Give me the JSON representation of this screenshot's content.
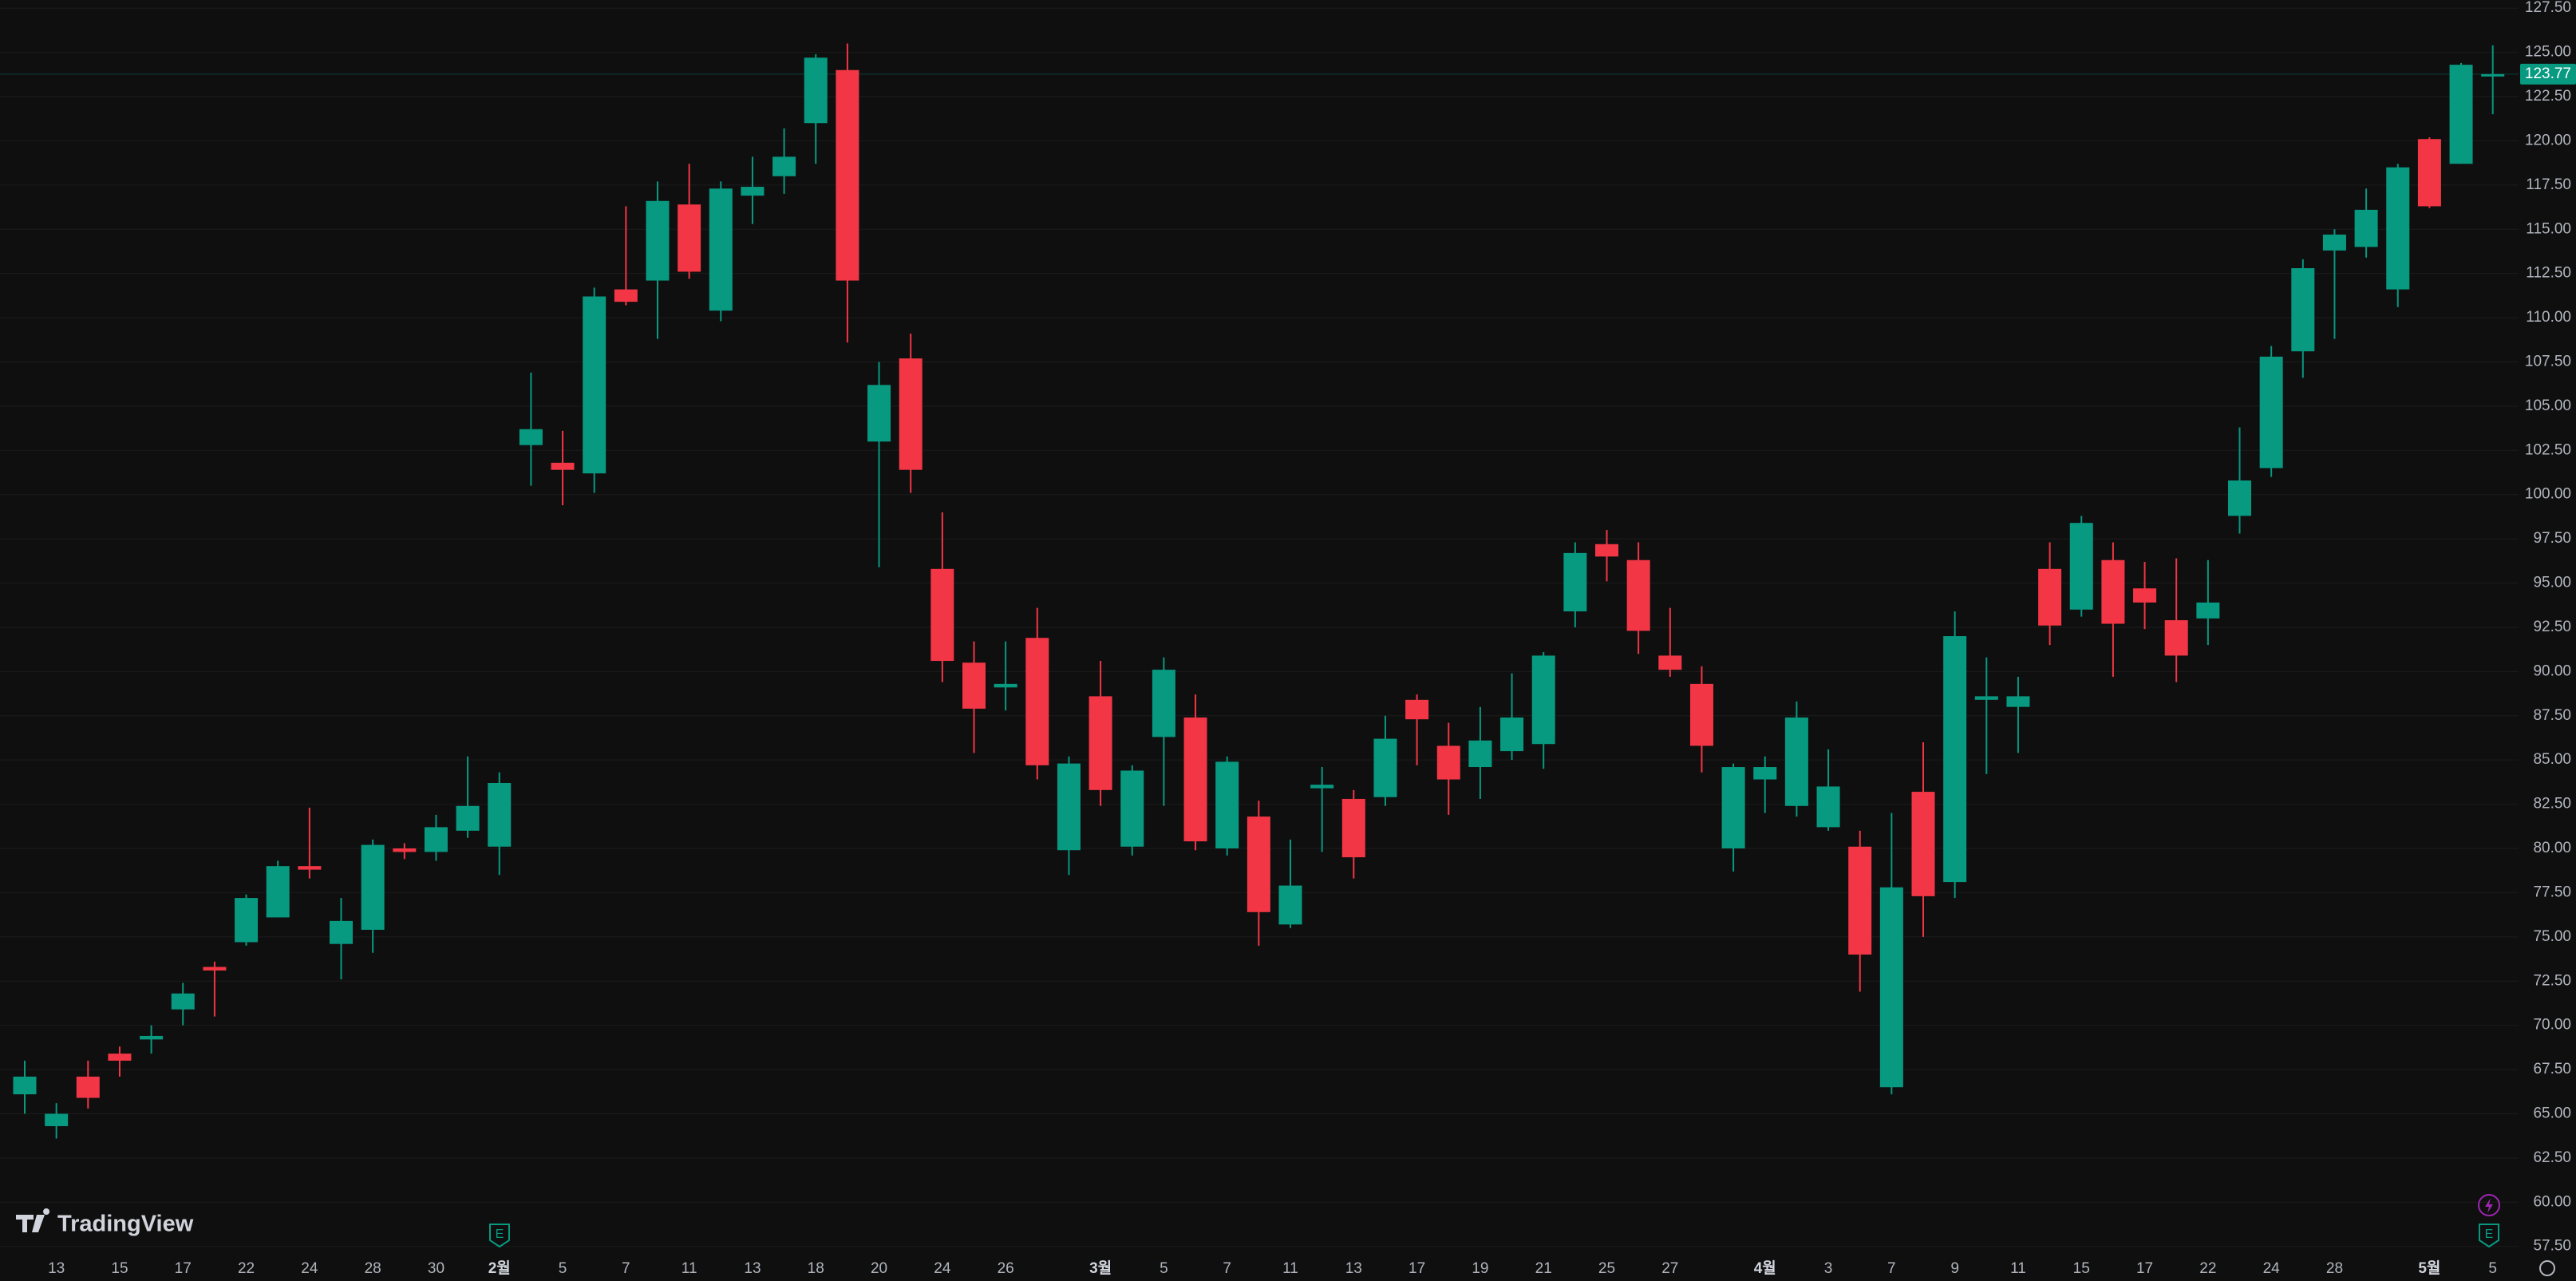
{
  "chart_data": {
    "type": "candlestick",
    "categories": [
      null,
      "13",
      null,
      "15",
      null,
      "17",
      null,
      "22",
      null,
      "24",
      null,
      "28",
      null,
      "30",
      null,
      "2월",
      null,
      "5",
      null,
      "7",
      null,
      "11",
      null,
      "13",
      null,
      "18",
      null,
      "20",
      null,
      "24",
      null,
      "26",
      null,
      null,
      "3월",
      null,
      "5",
      null,
      "7",
      null,
      "11",
      null,
      "13",
      null,
      "17",
      null,
      "19",
      null,
      "21",
      null,
      "25",
      null,
      "27",
      null,
      null,
      "4월",
      null,
      "3",
      null,
      "7",
      null,
      "9",
      null,
      "11",
      null,
      "15",
      null,
      "17",
      null,
      "22",
      null,
      "24",
      null,
      "28",
      null,
      null,
      "5월",
      null,
      "5"
    ],
    "open": [
      66.1,
      64.3,
      67.1,
      68.4,
      69.2,
      70.9,
      73.3,
      74.7,
      76.1,
      79.0,
      74.6,
      75.4,
      80.0,
      79.8,
      81.0,
      80.1,
      102.8,
      101.8,
      101.2,
      111.6,
      112.1,
      116.4,
      110.4,
      116.9,
      118.0,
      121.0,
      124.0,
      103.0,
      107.7,
      95.8,
      90.5,
      89.1,
      91.9,
      79.9,
      88.6,
      80.1,
      86.3,
      87.4,
      80.0,
      81.8,
      75.7,
      83.4,
      82.8,
      82.9,
      88.4,
      85.8,
      84.6,
      85.5,
      85.9,
      93.4,
      97.2,
      96.3,
      90.9,
      89.3,
      80.0,
      83.9,
      82.4,
      81.2,
      80.1,
      66.5,
      83.2,
      78.1,
      88.4,
      88.0,
      95.8,
      93.5,
      96.3,
      94.7,
      92.9,
      93.0,
      98.8,
      101.5,
      108.1,
      113.8,
      114.0,
      111.6,
      120.1,
      118.7,
      123.7
    ],
    "high": [
      68.0,
      65.6,
      68.0,
      68.8,
      70.0,
      72.4,
      73.6,
      77.4,
      79.3,
      82.3,
      77.2,
      80.5,
      80.3,
      81.9,
      85.2,
      84.3,
      106.9,
      103.6,
      111.7,
      116.3,
      117.7,
      118.7,
      117.7,
      119.1,
      120.7,
      124.9,
      125.5,
      107.5,
      109.1,
      99.0,
      91.7,
      91.7,
      93.6,
      85.2,
      90.6,
      84.7,
      90.8,
      88.7,
      85.2,
      82.7,
      80.5,
      84.6,
      83.3,
      87.5,
      88.7,
      87.1,
      88.0,
      89.9,
      91.1,
      97.3,
      98.0,
      97.3,
      93.6,
      90.3,
      84.8,
      85.2,
      88.3,
      85.6,
      81.0,
      82.0,
      86.0,
      93.4,
      90.8,
      89.7,
      97.3,
      98.8,
      97.3,
      96.2,
      96.4,
      96.3,
      103.8,
      108.4,
      113.3,
      115.0,
      117.3,
      118.7,
      120.2,
      124.4,
      125.4
    ],
    "low": [
      65.0,
      63.6,
      65.3,
      67.1,
      68.4,
      70.0,
      70.5,
      74.5,
      76.1,
      78.3,
      72.6,
      74.1,
      79.4,
      79.3,
      80.6,
      78.5,
      100.5,
      99.4,
      100.1,
      110.7,
      108.8,
      112.2,
      109.8,
      115.3,
      117.0,
      118.7,
      108.6,
      95.9,
      100.1,
      89.4,
      85.4,
      87.8,
      83.9,
      78.5,
      82.4,
      79.6,
      82.4,
      79.9,
      79.6,
      74.5,
      75.5,
      79.8,
      78.3,
      82.4,
      84.7,
      81.9,
      82.8,
      85.0,
      84.5,
      92.5,
      95.1,
      91.0,
      89.7,
      84.3,
      78.7,
      82.0,
      81.8,
      81.0,
      71.9,
      66.1,
      75.0,
      77.2,
      84.2,
      85.4,
      91.5,
      93.1,
      89.7,
      92.4,
      89.4,
      91.5,
      97.8,
      101.0,
      106.6,
      108.8,
      113.4,
      110.6,
      116.2,
      118.7,
      121.5
    ],
    "close": [
      67.1,
      65.0,
      65.9,
      68.0,
      69.4,
      71.8,
      73.1,
      77.2,
      79.0,
      78.8,
      75.9,
      80.2,
      79.8,
      81.2,
      82.4,
      83.7,
      103.7,
      101.4,
      111.2,
      110.9,
      116.6,
      112.6,
      117.3,
      117.4,
      119.1,
      124.7,
      112.1,
      106.2,
      101.4,
      90.6,
      87.9,
      89.3,
      84.7,
      84.8,
      83.3,
      84.4,
      90.1,
      80.4,
      84.9,
      76.4,
      77.9,
      83.6,
      79.5,
      86.2,
      87.3,
      83.9,
      86.1,
      87.4,
      90.9,
      96.7,
      96.5,
      92.3,
      90.1,
      85.8,
      84.6,
      84.6,
      87.4,
      83.5,
      74.0,
      77.8,
      77.3,
      92.0,
      88.6,
      88.6,
      92.6,
      98.4,
      92.7,
      93.9,
      90.9,
      93.9,
      100.8,
      107.8,
      112.8,
      114.7,
      116.1,
      118.5,
      116.3,
      124.3,
      123.77
    ],
    "up_color": "#089981",
    "down_color": "#f23645",
    "last_price": 123.77,
    "ylim": [
      56.9,
      127.96
    ],
    "yticks": [
      {
        "value": 57.5,
        "label": "57.50"
      },
      {
        "value": 60,
        "label": "60.00"
      },
      {
        "value": 62.5,
        "label": "62.50"
      },
      {
        "value": 65,
        "label": "65.00"
      },
      {
        "value": 67.5,
        "label": "67.50"
      },
      {
        "value": 70,
        "label": "70.00"
      },
      {
        "value": 72.5,
        "label": "72.50"
      },
      {
        "value": 75,
        "label": "75.00"
      },
      {
        "value": 77.5,
        "label": "77.50"
      },
      {
        "value": 80,
        "label": "80.00"
      },
      {
        "value": 82.5,
        "label": "82.50"
      },
      {
        "value": 85,
        "label": "85.00"
      },
      {
        "value": 87.5,
        "label": "87.50"
      },
      {
        "value": 90,
        "label": "90.00"
      },
      {
        "value": 92.5,
        "label": "92.50"
      },
      {
        "value": 95,
        "label": "95.00"
      },
      {
        "value": 97.5,
        "label": "97.50"
      },
      {
        "value": 100,
        "label": "100.00"
      },
      {
        "value": 102.5,
        "label": "102.50"
      },
      {
        "value": 105,
        "label": "105.00"
      },
      {
        "value": 107.5,
        "label": "107.50"
      },
      {
        "value": 110,
        "label": "110.00"
      },
      {
        "value": 112.5,
        "label": "112.50"
      },
      {
        "value": 115,
        "label": "115.00"
      },
      {
        "value": 117.5,
        "label": "117.50"
      },
      {
        "value": 120,
        "label": "120.00"
      },
      {
        "value": 122.5,
        "label": "122.50"
      },
      {
        "value": 125,
        "label": "125.00"
      },
      {
        "value": 127.5,
        "label": "127.50"
      }
    ],
    "grid": true,
    "markers": [
      "E",
      "E"
    ]
  },
  "branding": {
    "logo": "TradingView"
  }
}
